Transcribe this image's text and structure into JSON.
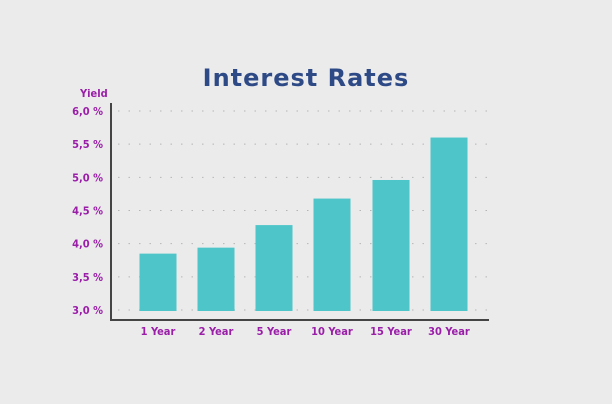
{
  "chart_data": {
    "type": "bar",
    "title": "Interest Rates",
    "ylabel": "Yield",
    "xlabel": "",
    "categories": [
      "1 Year",
      "2 Year",
      "5 Year",
      "10 Year",
      "15 Year",
      "30 Year"
    ],
    "values": [
      3.85,
      3.94,
      4.28,
      4.68,
      4.96,
      5.6
    ],
    "ylim": [
      3.0,
      6.0
    ],
    "yticks": [
      6.0,
      5.5,
      5.0,
      4.5,
      4.0,
      3.5,
      3.0
    ],
    "ytick_labels": [
      "6,0 %",
      "5,5 %",
      "5,0 %",
      "4,5 %",
      "4,0 %",
      "3,5 %",
      "3,0 %"
    ],
    "grid": true,
    "colors": {
      "bar": "#4ec6c9",
      "title": "#2e4a86",
      "labels": "#9a1ea8",
      "axis": "#444444",
      "grid": "#b5b5b5"
    }
  }
}
